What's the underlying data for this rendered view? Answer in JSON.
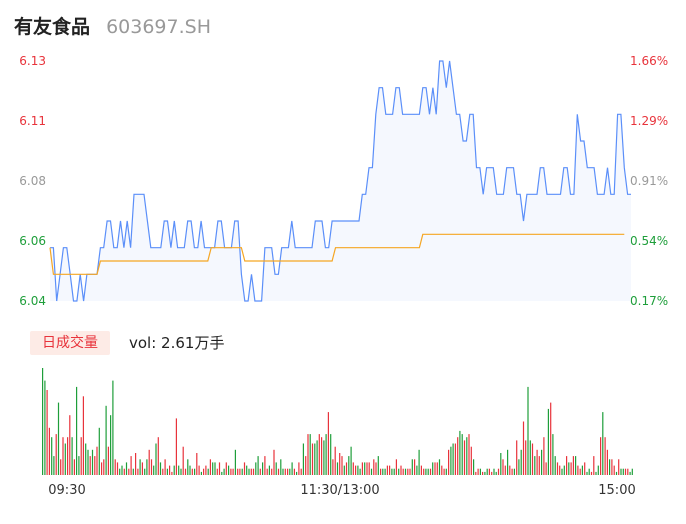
{
  "header": {
    "stock_name": "有友食品",
    "stock_code": "603697.SH"
  },
  "colors": {
    "up": "#e8333b",
    "down": "#1e9e3a",
    "neutral": "#999999",
    "price_line": "#5b8ff9",
    "avg_line": "#f5a623"
  },
  "volume_panel": {
    "badge_label": "日成交量",
    "volume_text": "vol: 2.61万手"
  },
  "chart_data": [
    {
      "type": "line",
      "series": [],
      "y_ticks": [
        "6.13",
        "6.11",
        "6.08",
        "6.06",
        "6.04"
      ],
      "y_ticks_right": [
        "1.66%",
        "1.29%",
        "0.91%",
        "0.54%",
        "0.17%"
      ],
      "ylim": [
        6.04,
        6.13
      ],
      "x_ticks": [
        "09:30",
        "11:30/13:00",
        "15:00"
      ],
      "price": [
        6.06,
        6.06,
        6.04,
        6.05,
        6.06,
        6.06,
        6.05,
        6.04,
        6.04,
        6.05,
        6.04,
        6.05,
        6.05,
        6.05,
        6.05,
        6.06,
        6.06,
        6.07,
        6.07,
        6.06,
        6.06,
        6.07,
        6.06,
        6.07,
        6.06,
        6.08,
        6.08,
        6.08,
        6.08,
        6.07,
        6.06,
        6.06,
        6.06,
        6.06,
        6.07,
        6.07,
        6.06,
        6.07,
        6.06,
        6.06,
        6.06,
        6.07,
        6.07,
        6.06,
        6.06,
        6.07,
        6.06,
        6.06,
        6.06,
        6.06,
        6.07,
        6.07,
        6.06,
        6.06,
        6.06,
        6.07,
        6.07,
        6.05,
        6.04,
        6.04,
        6.05,
        6.04,
        6.04,
        6.04,
        6.06,
        6.06,
        6.06,
        6.05,
        6.05,
        6.06,
        6.06,
        6.06,
        6.07,
        6.06,
        6.06,
        6.06,
        6.06,
        6.06,
        6.06,
        6.07,
        6.07,
        6.07,
        6.06,
        6.06,
        6.07,
        6.07,
        6.07,
        6.07,
        6.07,
        6.07,
        6.07,
        6.07,
        6.07,
        6.08,
        6.08,
        6.09,
        6.09,
        6.11,
        6.12,
        6.12,
        6.11,
        6.11,
        6.11,
        6.12,
        6.12,
        6.11,
        6.11,
        6.11,
        6.11,
        6.11,
        6.11,
        6.12,
        6.12,
        6.11,
        6.12,
        6.11,
        6.13,
        6.13,
        6.12,
        6.13,
        6.12,
        6.11,
        6.11,
        6.1,
        6.1,
        6.11,
        6.11,
        6.09,
        6.09,
        6.08,
        6.09,
        6.09,
        6.09,
        6.08,
        6.08,
        6.08,
        6.09,
        6.09,
        6.09,
        6.08,
        6.08,
        6.07,
        6.08,
        6.08,
        6.08,
        6.08,
        6.09,
        6.09,
        6.08,
        6.08,
        6.08,
        6.08,
        6.08,
        6.09,
        6.09,
        6.08,
        6.08,
        6.11,
        6.1,
        6.1,
        6.09,
        6.09,
        6.09,
        6.08,
        6.08,
        6.08,
        6.09,
        6.08,
        6.08,
        6.11,
        6.11,
        6.09,
        6.08,
        6.08
      ],
      "avg_price": [
        6.06,
        6.05,
        6.05,
        6.05,
        6.05,
        6.05,
        6.05,
        6.05,
        6.05,
        6.05,
        6.05,
        6.05,
        6.05,
        6.05,
        6.05,
        6.055,
        6.055,
        6.055,
        6.055,
        6.055,
        6.055,
        6.055,
        6.055,
        6.055,
        6.055,
        6.055,
        6.055,
        6.055,
        6.055,
        6.055,
        6.055,
        6.055,
        6.055,
        6.055,
        6.055,
        6.055,
        6.055,
        6.055,
        6.055,
        6.055,
        6.055,
        6.055,
        6.055,
        6.055,
        6.055,
        6.055,
        6.055,
        6.055,
        6.06,
        6.06,
        6.06,
        6.06,
        6.06,
        6.06,
        6.06,
        6.06,
        6.06,
        6.06,
        6.055,
        6.055,
        6.055,
        6.055,
        6.055,
        6.055,
        6.055,
        6.055,
        6.055,
        6.055,
        6.055,
        6.055,
        6.055,
        6.055,
        6.055,
        6.055,
        6.055,
        6.055,
        6.055,
        6.055,
        6.055,
        6.055,
        6.055,
        6.055,
        6.055,
        6.055,
        6.055,
        6.06,
        6.06,
        6.06,
        6.06,
        6.06,
        6.06,
        6.06,
        6.06,
        6.06,
        6.06,
        6.06,
        6.06,
        6.06,
        6.06,
        6.06,
        6.06,
        6.06,
        6.06,
        6.06,
        6.06,
        6.06,
        6.06,
        6.06,
        6.06,
        6.06,
        6.06,
        6.065,
        6.065,
        6.065,
        6.065,
        6.065,
        6.065,
        6.065,
        6.065,
        6.065,
        6.065,
        6.065,
        6.065,
        6.065,
        6.065,
        6.065,
        6.065,
        6.065,
        6.065,
        6.065,
        6.065,
        6.065,
        6.065,
        6.065,
        6.065,
        6.065,
        6.065,
        6.065,
        6.065,
        6.065,
        6.065,
        6.065,
        6.065,
        6.065,
        6.065,
        6.065,
        6.065,
        6.065,
        6.065,
        6.065,
        6.065,
        6.065,
        6.065,
        6.065,
        6.065,
        6.065,
        6.065,
        6.065,
        6.065,
        6.065,
        6.065,
        6.065,
        6.065,
        6.065,
        6.065,
        6.065,
        6.065,
        6.065,
        6.065,
        6.065,
        6.065,
        6.065
      ]
    },
    {
      "type": "bar",
      "volume": [
        34,
        30,
        27,
        15,
        12,
        6,
        13,
        23,
        5,
        12,
        10,
        12,
        19,
        12,
        5,
        28,
        6,
        12,
        25,
        10,
        8,
        6,
        8,
        6,
        9,
        15,
        4,
        5,
        22,
        9,
        19,
        30,
        5,
        4,
        2,
        3,
        2,
        4,
        2,
        6,
        2,
        7,
        2,
        5,
        4,
        2,
        5,
        8,
        5,
        3,
        10,
        12,
        4,
        2,
        5,
        2,
        3,
        1,
        3,
        18,
        3,
        2,
        9,
        2,
        5,
        3,
        2,
        2,
        7,
        3,
        1,
        2,
        3,
        2,
        5,
        4,
        4,
        2,
        4,
        1,
        2,
        4,
        3,
        2,
        2,
        8,
        2,
        2,
        2,
        4,
        3,
        2,
        2,
        2,
        4,
        6,
        2,
        4,
        6,
        2,
        3,
        2,
        8,
        4,
        2,
        5,
        2,
        2,
        2,
        2,
        4,
        2,
        1,
        4,
        2,
        10,
        6,
        13,
        13,
        10,
        10,
        11,
        13,
        12,
        11,
        13,
        20,
        13,
        5,
        9,
        4,
        7,
        6,
        3,
        4,
        6,
        9,
        4,
        3,
        3,
        2,
        4,
        4,
        4,
        4,
        2,
        5,
        4,
        6,
        2,
        2,
        2,
        3,
        3,
        2,
        2,
        5,
        2,
        3,
        2,
        2,
        2,
        2,
        5,
        5,
        3,
        8,
        3,
        2,
        2,
        2,
        2,
        4,
        4,
        4,
        5,
        3,
        2,
        2,
        8,
        9,
        10,
        10,
        12,
        14,
        13,
        11,
        12,
        13,
        9,
        5,
        1,
        2,
        2,
        1,
        1,
        2,
        2,
        1,
        2,
        1,
        2,
        7,
        5,
        3,
        8,
        3,
        2,
        2,
        11,
        5,
        8,
        17,
        11,
        28,
        11,
        10,
        6,
        8,
        6,
        8,
        12,
        4,
        21,
        23,
        13,
        6,
        4,
        3,
        2,
        3,
        6,
        4,
        4,
        6,
        6,
        3,
        2,
        3,
        4,
        1,
        2,
        1,
        6,
        1,
        3,
        12,
        20,
        12,
        8,
        5,
        5,
        3,
        1,
        5,
        2,
        2,
        2,
        2,
        1,
        2
      ],
      "volume_colors": []
    }
  ]
}
